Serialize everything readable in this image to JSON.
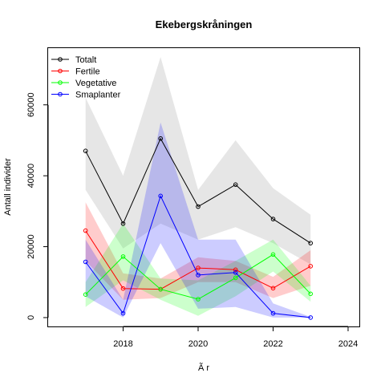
{
  "chart_data": {
    "type": "line",
    "title": "Ekebergskråningen",
    "xlabel": "Ã r",
    "ylabel": "Antall individer",
    "xlim": [
      2016,
      2024.3
    ],
    "ylim": [
      -2500,
      76000
    ],
    "x_ticks": [
      2018,
      2020,
      2022,
      2024
    ],
    "x_tick_labels": [
      "2018",
      "2020",
      "2022",
      "2024"
    ],
    "y_ticks": [
      0,
      20000,
      40000,
      60000
    ],
    "y_tick_labels": [
      "0",
      "20000",
      "40000",
      "60000"
    ],
    "grid": false,
    "legend_position": "top-left",
    "x": [
      2017,
      2018,
      2019,
      2020,
      2021,
      2022,
      2023
    ],
    "series": [
      {
        "name": "Totalt",
        "color": "#000000",
        "band_color": "#bdbdbd",
        "values": [
          47000,
          26500,
          50500,
          31300,
          37500,
          27800,
          21000
        ],
        "lower": [
          36000,
          19500,
          26500,
          22000,
          25500,
          21000,
          15000
        ],
        "upper": [
          62000,
          40000,
          73500,
          36000,
          50000,
          36500,
          29000
        ]
      },
      {
        "name": "Fertile",
        "color": "#ff0000",
        "band_color": "#ff0000",
        "values": [
          24500,
          8200,
          8000,
          14000,
          13500,
          8300,
          14500
        ],
        "lower": [
          16000,
          5000,
          5500,
          10000,
          10000,
          5500,
          9000
        ],
        "upper": [
          32500,
          12500,
          11000,
          17000,
          16000,
          11500,
          19000
        ]
      },
      {
        "name": "Vegetative",
        "color": "#00ff00",
        "band_color": "#00ff00",
        "values": [
          6500,
          17200,
          8000,
          5200,
          11200,
          17800,
          6700
        ],
        "lower": [
          3000,
          10500,
          5000,
          500,
          6000,
          13000,
          4500
        ],
        "upper": [
          10000,
          26500,
          11000,
          10500,
          16000,
          22000,
          9000
        ]
      },
      {
        "name": "Smaplanter",
        "color": "#0000ff",
        "band_color": "#0000ff",
        "values": [
          15700,
          1200,
          34300,
          12000,
          12700,
          1200,
          0
        ],
        "lower": [
          6000,
          0,
          21000,
          2500,
          3000,
          0,
          0
        ],
        "upper": [
          22000,
          5000,
          55000,
          22000,
          22000,
          4000,
          200
        ]
      }
    ]
  }
}
